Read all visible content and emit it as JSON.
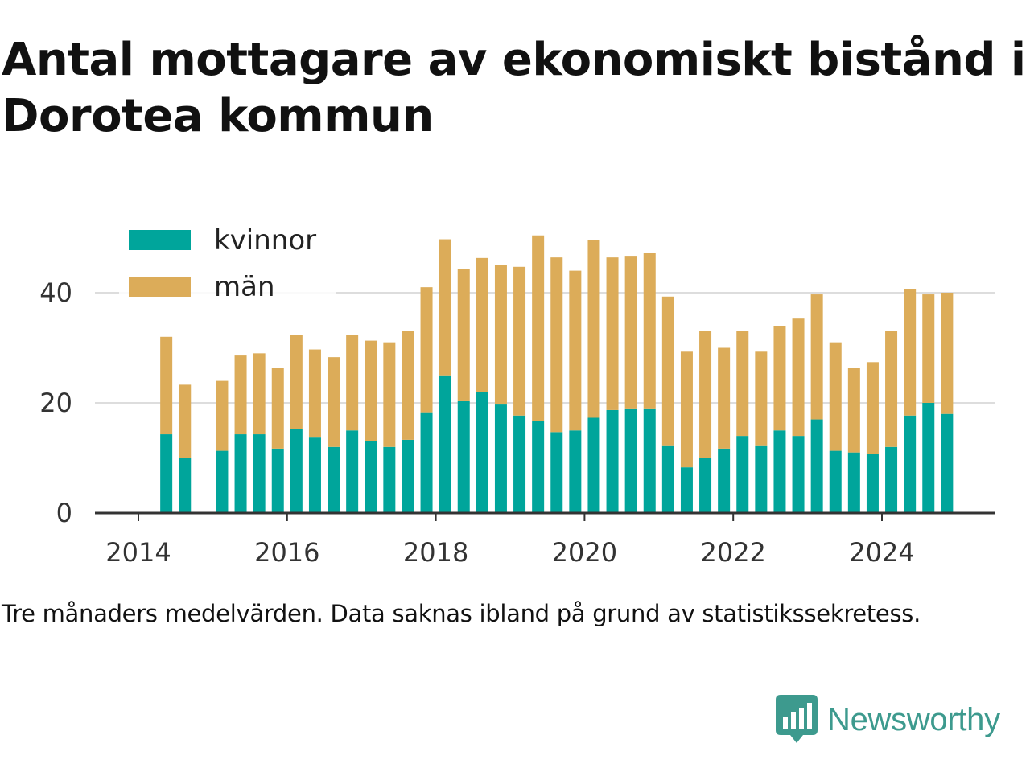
{
  "title": "Antal mottagare av ekonomiskt bistånd i Dorotea kommun",
  "caption": "Tre månaders medelvärden. Data saknas ibland på grund av statistikssekretess.",
  "brand": {
    "name": "Newsworthy",
    "icon": "newsworthy-logo-icon",
    "color": "#3d9a8e"
  },
  "colors": {
    "kvinnor": "#00a59b",
    "man": "#dcac59",
    "grid": "#dddddd",
    "axis": "#333333"
  },
  "chart_data": {
    "type": "bar",
    "stacked": true,
    "title": "Antal mottagare av ekonomiskt bistånd i Dorotea kommun",
    "xlabel": "",
    "ylabel": "",
    "ylim": [
      0,
      50
    ],
    "yticks": [
      0,
      20,
      40
    ],
    "xticks": [
      "2014",
      "2016",
      "2018",
      "2020",
      "2022",
      "2024"
    ],
    "legend": {
      "placement": "top-left"
    },
    "grid": true,
    "x": [
      "2014-Q2",
      "2014-Q3",
      "2014-Q4",
      "2015-Q1",
      "2015-Q2",
      "2015-Q3",
      "2015-Q4",
      "2016-Q1",
      "2016-Q2",
      "2016-Q3",
      "2016-Q4",
      "2017-Q1",
      "2017-Q2",
      "2017-Q3",
      "2017-Q4",
      "2018-Q1",
      "2018-Q2",
      "2018-Q3",
      "2018-Q4",
      "2019-Q1",
      "2019-Q2",
      "2019-Q3",
      "2019-Q4",
      "2020-Q1",
      "2020-Q2",
      "2020-Q3",
      "2020-Q4",
      "2021-Q1",
      "2021-Q2",
      "2021-Q3",
      "2021-Q4",
      "2022-Q1",
      "2022-Q2",
      "2022-Q3",
      "2022-Q4",
      "2023-Q1",
      "2023-Q2",
      "2023-Q3",
      "2023-Q4",
      "2024-Q1",
      "2024-Q2",
      "2024-Q3",
      "2024-Q4"
    ],
    "series": [
      {
        "name": "kvinnor",
        "values": [
          14.3,
          10,
          null,
          11.3,
          14.3,
          14.3,
          11.7,
          15.3,
          13.7,
          12,
          15,
          13,
          12,
          13.3,
          18.3,
          25,
          20.3,
          22,
          19.7,
          17.7,
          16.7,
          14.7,
          15,
          17.3,
          18.7,
          19,
          19,
          12.3,
          8.3,
          10,
          11.7,
          14,
          12.3,
          15,
          14,
          17,
          11.3,
          11,
          10.7,
          12,
          17.7,
          20,
          18
        ]
      },
      {
        "name": "män",
        "values": [
          17.7,
          13.3,
          null,
          12.7,
          14.3,
          14.7,
          14.7,
          17,
          16,
          16.3,
          17.3,
          18.3,
          19,
          19.7,
          22.7,
          24.7,
          24,
          24.3,
          25.3,
          27,
          33.7,
          31.7,
          29,
          32.3,
          27.7,
          27.7,
          28.3,
          27,
          21,
          23,
          18.3,
          19,
          17,
          19,
          21.3,
          22.7,
          19.7,
          15.3,
          16.7,
          21,
          23,
          19.7,
          22
        ]
      }
    ]
  }
}
